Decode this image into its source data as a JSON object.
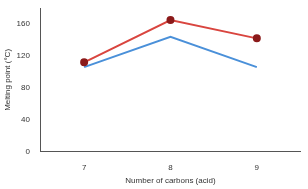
{
  "chart_data": {
    "type": "line",
    "x_label": "Number of carbons (acid)",
    "y_label": "Melting point (°C)",
    "categories": [
      "7",
      "8",
      "9"
    ],
    "series": [
      {
        "color": "#d9453f",
        "marker": "circle",
        "values": [
          112,
          165,
          142
        ]
      },
      {
        "color": "#4a90d9",
        "marker": "none",
        "values": [
          106,
          144,
          106
        ]
      }
    ],
    "ylim": [
      0,
      180
    ],
    "yticks": [
      0,
      40,
      80,
      120,
      160
    ],
    "grid": false
  }
}
